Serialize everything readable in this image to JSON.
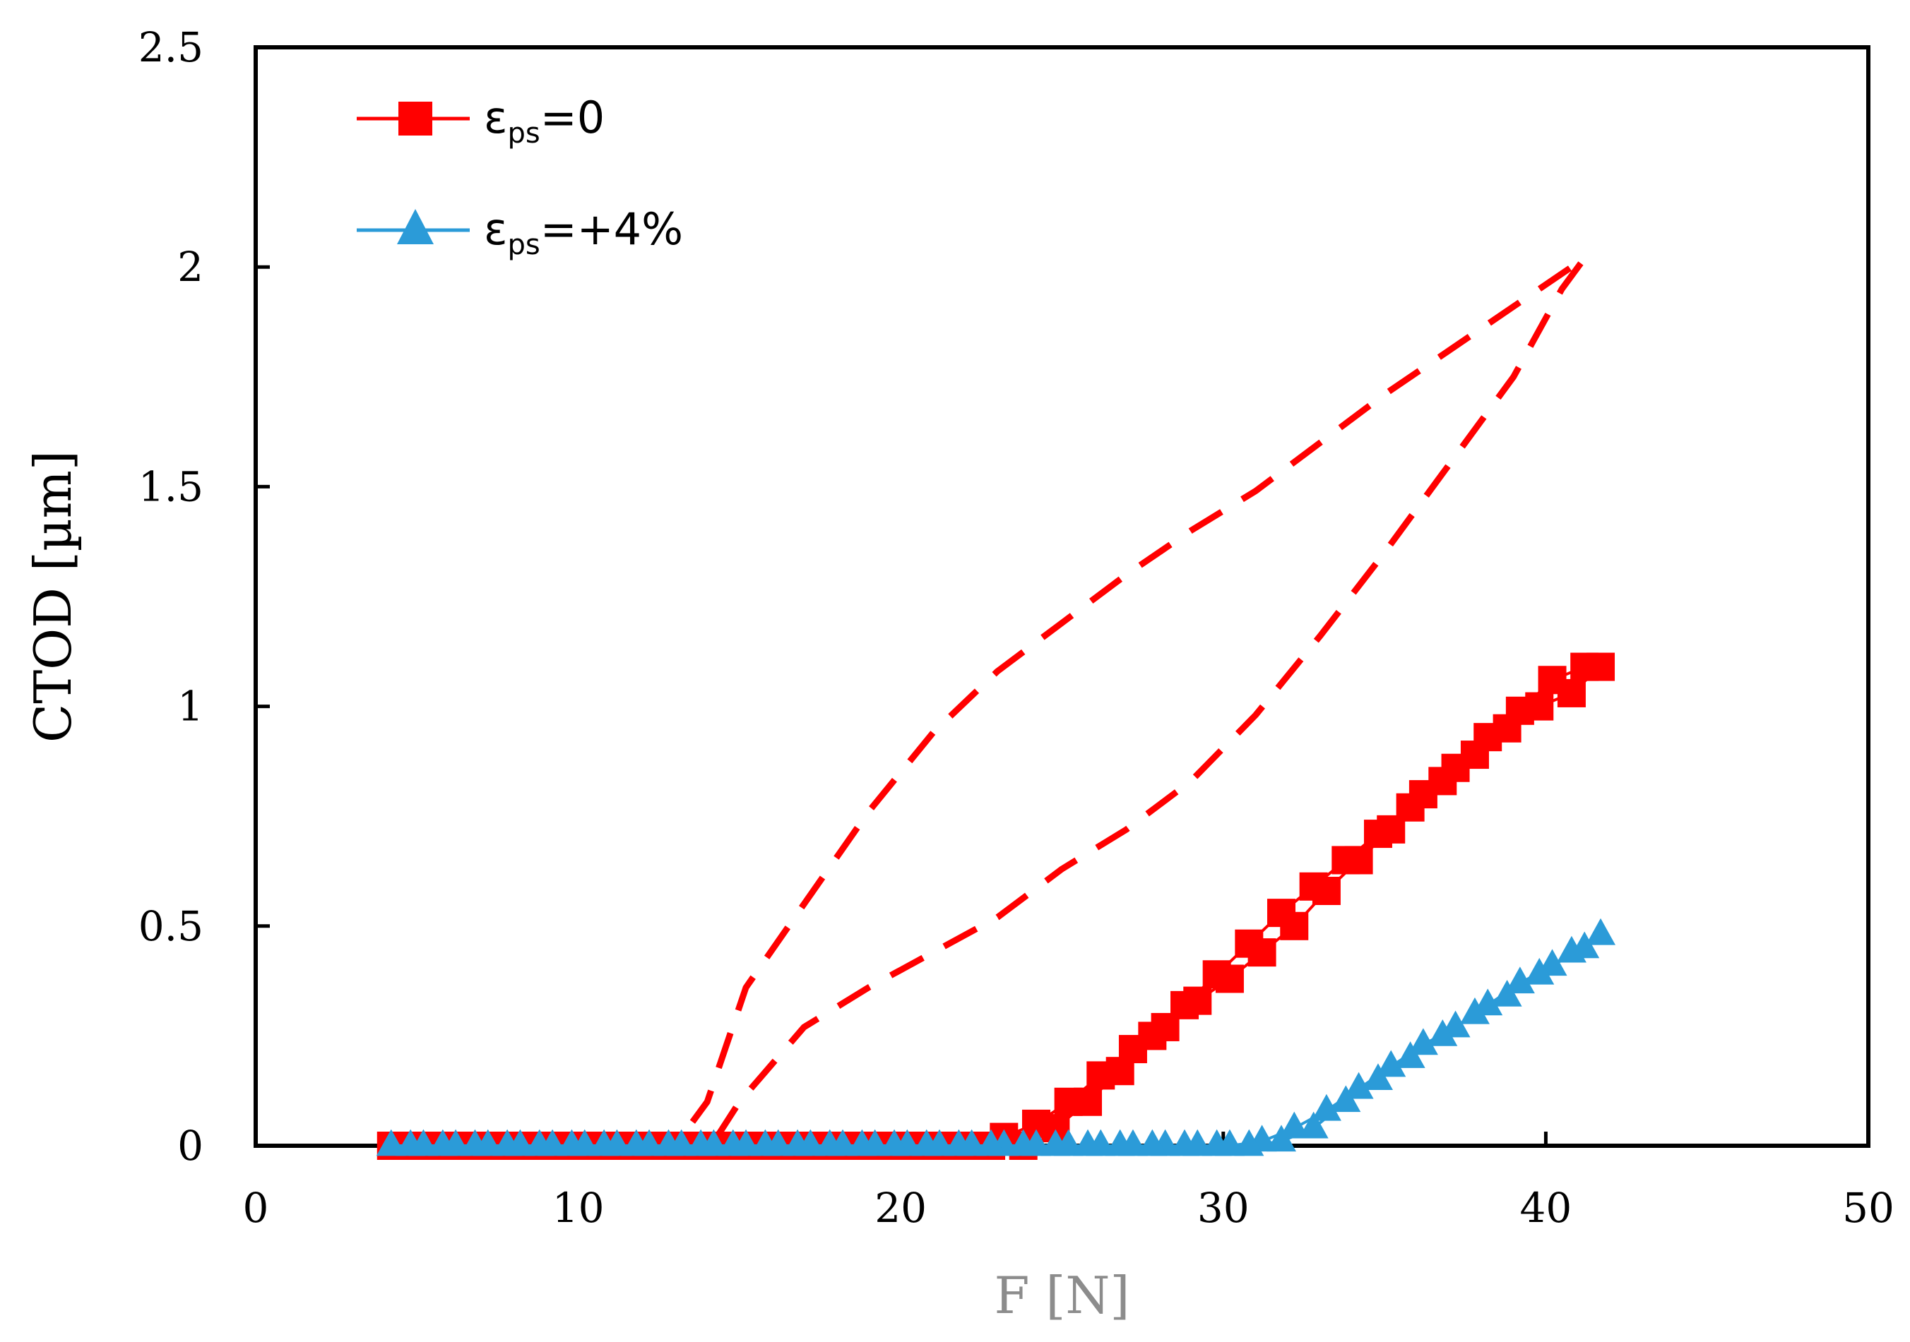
{
  "chart_data": {
    "type": "scatter",
    "xlabel": "F [N]",
    "ylabel": "CTOD [µm]",
    "xlim": [
      0,
      50
    ],
    "ylim": [
      0,
      2.5
    ],
    "xticks": [
      "0",
      "10",
      "20",
      "30",
      "40",
      "50"
    ],
    "yticks": [
      "0",
      "0.5",
      "1",
      "1.5",
      "2",
      "2.5"
    ],
    "grid": false,
    "legend": {
      "placement": "top-left",
      "entries": [
        {
          "prefix": "ε",
          "sub": "ps",
          "suffix": "=0",
          "marker": "square",
          "color": "#ff0000"
        },
        {
          "prefix": "ε",
          "sub": "ps",
          "suffix": "=+4%",
          "marker": "triangle",
          "color": "#2b9bd8"
        }
      ]
    },
    "series": [
      {
        "id": "eps0-dashed",
        "style": "dashed",
        "marker": "none",
        "color": "#ff0000",
        "x": [
          4.5,
          13.0,
          13.5,
          14.0,
          15.2,
          17.0,
          19.0,
          21.0,
          23.0,
          25.0,
          27.0,
          29.0,
          31.0,
          33.0,
          35.0,
          37.0,
          39.0,
          41.2,
          40.5,
          39.0,
          37.0,
          35.0,
          33.0,
          31.0,
          29.0,
          27.0,
          25.0,
          23.0,
          21.0,
          19.0,
          17.0,
          15.0,
          14.3,
          13.0,
          4.5
        ],
        "y": [
          0,
          0,
          0.05,
          0.1,
          0.36,
          0.55,
          0.76,
          0.94,
          1.08,
          1.19,
          1.3,
          1.4,
          1.49,
          1.6,
          1.71,
          1.81,
          1.91,
          2.02,
          1.95,
          1.75,
          1.55,
          1.35,
          1.16,
          0.98,
          0.83,
          0.72,
          0.63,
          0.52,
          0.44,
          0.36,
          0.27,
          0.1,
          0.02,
          0,
          0
        ]
      },
      {
        "id": "eps0-markers",
        "style": "solid",
        "marker": "square",
        "color": "#ff0000",
        "x": [
          4.2,
          5.2,
          6.2,
          7.2,
          8.2,
          9.2,
          10.2,
          11.2,
          12.2,
          13.2,
          14.2,
          15.2,
          16.2,
          17.2,
          18.2,
          19.2,
          20.2,
          21.2,
          22.2,
          23.2,
          24.2,
          25.2,
          26.2,
          27.2,
          28.2,
          29.2,
          30.2,
          31.2,
          32.2,
          33.2,
          34.2,
          35.2,
          36.2,
          37.2,
          38.2,
          39.2,
          40.2,
          41.2,
          41.7,
          40.8,
          39.8,
          38.8,
          37.8,
          36.8,
          35.8,
          34.8,
          33.8,
          32.8,
          31.8,
          30.8,
          29.8,
          28.8,
          27.8,
          26.8,
          25.8,
          24.8,
          23.8,
          22.8,
          21.8,
          20.8,
          19.8,
          18.8,
          17.8,
          16.8,
          15.8,
          14.8,
          13.8,
          12.8,
          11.8,
          10.8,
          9.8,
          8.8,
          7.8,
          6.8,
          5.8,
          4.8
        ],
        "y": [
          0,
          0,
          0,
          0,
          0,
          0,
          0,
          0,
          0,
          0,
          0,
          0,
          0,
          0,
          0,
          0,
          0,
          0,
          0,
          0.02,
          0.05,
          0.1,
          0.16,
          0.22,
          0.27,
          0.33,
          0.38,
          0.44,
          0.5,
          0.58,
          0.65,
          0.72,
          0.8,
          0.86,
          0.93,
          0.99,
          1.06,
          1.09,
          1.09,
          1.03,
          1.0,
          0.95,
          0.89,
          0.83,
          0.77,
          0.71,
          0.65,
          0.59,
          0.53,
          0.46,
          0.39,
          0.32,
          0.25,
          0.17,
          0.1,
          0.04,
          0,
          0,
          0,
          0,
          0,
          0,
          0,
          0,
          0,
          0,
          0,
          0,
          0,
          0,
          0,
          0,
          0,
          0,
          0,
          0
        ]
      },
      {
        "id": "eps4-markers",
        "style": "solid",
        "marker": "triangle",
        "color": "#2b9bd8",
        "x": [
          4.2,
          5.2,
          6.2,
          7.2,
          8.2,
          9.2,
          10.2,
          11.2,
          12.2,
          13.2,
          14.2,
          15.2,
          16.2,
          17.2,
          18.2,
          19.2,
          20.2,
          21.2,
          22.2,
          23.2,
          24.2,
          25.2,
          26.2,
          27.2,
          28.2,
          29.2,
          30.2,
          31.2,
          32.2,
          33.2,
          34.2,
          35.2,
          36.2,
          37.2,
          38.2,
          39.2,
          40.2,
          41.2,
          41.7,
          40.8,
          39.8,
          38.8,
          37.8,
          36.8,
          35.8,
          34.8,
          33.8,
          32.8,
          31.8,
          30.8,
          29.8,
          28.8,
          27.8,
          26.8,
          25.8,
          24.8,
          23.8,
          22.8,
          21.8,
          20.8,
          19.8,
          18.8,
          17.8,
          16.8,
          15.8,
          14.8,
          13.8,
          12.8,
          11.8,
          10.8,
          9.8,
          8.8,
          7.8,
          6.8,
          5.8,
          4.8
        ],
        "y": [
          0,
          0,
          0,
          0,
          0,
          0,
          0,
          0,
          0,
          0,
          0,
          0,
          0,
          0,
          0,
          0,
          0,
          0,
          0,
          0,
          0,
          0,
          0,
          0,
          0,
          0,
          0,
          0.01,
          0.04,
          0.08,
          0.13,
          0.18,
          0.23,
          0.27,
          0.32,
          0.37,
          0.41,
          0.45,
          0.48,
          0.44,
          0.39,
          0.34,
          0.3,
          0.25,
          0.2,
          0.15,
          0.1,
          0.04,
          0.01,
          0,
          0,
          0,
          0,
          0,
          0,
          0,
          0,
          0,
          0,
          0,
          0,
          0,
          0,
          0,
          0,
          0,
          0,
          0,
          0,
          0,
          0,
          0,
          0,
          0,
          0,
          0
        ]
      }
    ]
  }
}
